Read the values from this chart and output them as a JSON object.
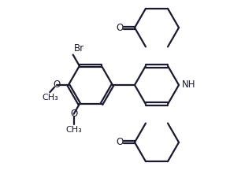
{
  "bg_color": "#ffffff",
  "line_color": "#1a1a2e",
  "line_width": 1.6,
  "font_size_label": 8.5,
  "figsize": [
    2.92,
    2.16
  ],
  "dpi": 100,
  "xlim": [
    0.0,
    8.5
  ],
  "ylim": [
    0.0,
    6.2
  ]
}
